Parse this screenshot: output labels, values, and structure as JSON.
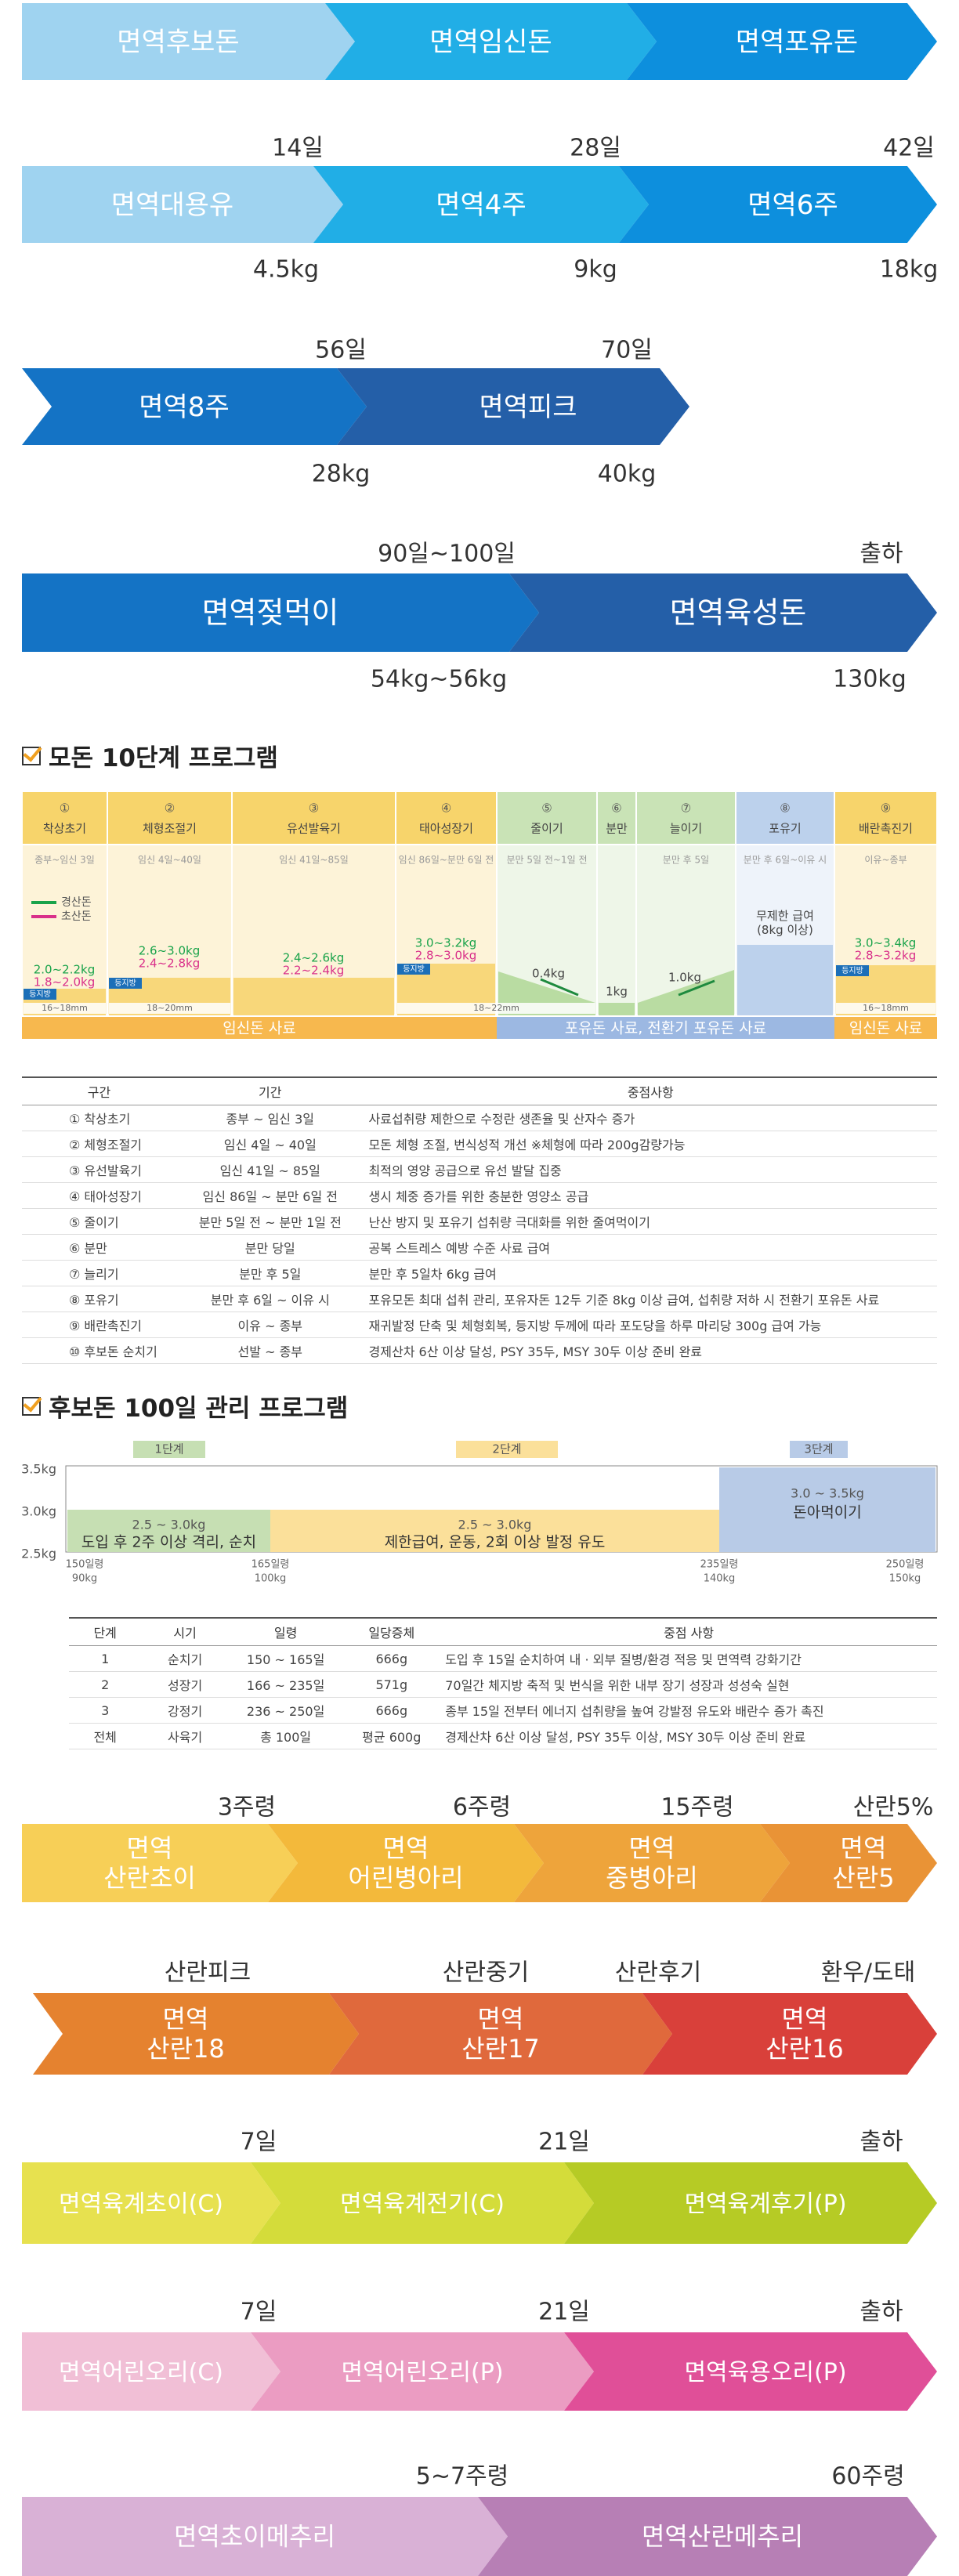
{
  "stage_flows": [
    {
      "id": "pig-breeding",
      "segments": [
        {
          "label": "면역후보돈",
          "color": "#9fd3f0"
        },
        {
          "label": "면역임신돈",
          "color": "#21aee6"
        },
        {
          "label": "면역포유돈",
          "color": "#0d8fdd"
        }
      ],
      "top_labels": [],
      "bottom_labels": []
    },
    {
      "id": "pig-weaning",
      "segments": [
        {
          "label": "면역대용유",
          "color": "#9fd3f0"
        },
        {
          "label": "면역4주",
          "color": "#21aee6"
        },
        {
          "label": "면역6주",
          "color": "#0d8fdd"
        }
      ],
      "top_labels": [
        "14일",
        "28일",
        "42일"
      ],
      "bottom_labels": [
        "4.5kg",
        "9kg",
        "18kg"
      ]
    },
    {
      "id": "pig-grower",
      "segments": [
        {
          "label": "면역8주",
          "color": "#1473c5"
        },
        {
          "label": "면역피크",
          "color": "#245fa8"
        }
      ],
      "top_labels": [
        "56일",
        "70일"
      ],
      "bottom_labels": [
        "28kg",
        "40kg"
      ]
    },
    {
      "id": "pig-finisher",
      "segments": [
        {
          "label": "면역젖먹이",
          "color": "#1473c5"
        },
        {
          "label": "면역육성돈",
          "color": "#245fa8"
        }
      ],
      "top_labels": [
        "90일~100일",
        "출하"
      ],
      "bottom_labels": [
        "54kg~56kg",
        "130kg"
      ]
    },
    {
      "id": "layer-early",
      "segments": [
        {
          "label": "면역\n산란초이",
          "color": "#f7cf57"
        },
        {
          "label": "면역\n어린병아리",
          "color": "#f3b93b"
        },
        {
          "label": "면역\n중병아리",
          "color": "#eea43b"
        },
        {
          "label": "면역\n산란5",
          "color": "#e99336"
        }
      ],
      "top_labels": [
        "3주령",
        "6주령",
        "15주령",
        "산란5%"
      ],
      "bottom_labels": []
    },
    {
      "id": "layer-late",
      "segments": [
        {
          "label": "면역\n산란18",
          "color": "#e5822f"
        },
        {
          "label": "면역\n산란17",
          "color": "#e0693c"
        },
        {
          "label": "면역\n산란16",
          "color": "#d9403a"
        }
      ],
      "top_labels": [
        "산란피크",
        "산란중기",
        "산란후기",
        "환우/도태"
      ],
      "bottom_labels": []
    },
    {
      "id": "broiler",
      "segments": [
        {
          "label": "면역육계초이(C)",
          "color": "#e7e14f"
        },
        {
          "label": "면역육계전기(C)",
          "color": "#d4dc3a"
        },
        {
          "label": "면역육계후기(P)",
          "color": "#b6cb25"
        }
      ],
      "top_labels": [
        "7일",
        "21일",
        "출하"
      ],
      "bottom_labels": []
    },
    {
      "id": "duck",
      "segments": [
        {
          "label": "면역어린오리(C)",
          "color": "#f1bfd6"
        },
        {
          "label": "면역어린오리(P)",
          "color": "#eb9cc2"
        },
        {
          "label": "면역육용오리(P)",
          "color": "#e04f98"
        }
      ],
      "top_labels": [
        "7일",
        "21일",
        "출하"
      ],
      "bottom_labels": []
    },
    {
      "id": "quail",
      "segments": [
        {
          "label": "면역초이메추리",
          "color": "#d9b1d6"
        },
        {
          "label": "면역산란메추리",
          "color": "#b77fb5"
        }
      ],
      "top_labels": [
        "5~7주령",
        "60주령"
      ],
      "bottom_labels": []
    }
  ],
  "sow_program": {
    "title": "모돈 10단계 프로그램",
    "stages": [
      {
        "num": "①",
        "name": "착상초기",
        "period": "종부~임신 3일"
      },
      {
        "num": "②",
        "name": "체형조절기",
        "period": "임신 4일~40일"
      },
      {
        "num": "③",
        "name": "유선발육기",
        "period": "임신 41일~85일"
      },
      {
        "num": "④",
        "name": "태아성장기",
        "period": "임신 86일~분만 6일 전"
      },
      {
        "num": "⑤",
        "name": "줄이기",
        "period": "분만 5일 전~1일 전"
      },
      {
        "num": "⑥",
        "name": "분만",
        "period": ""
      },
      {
        "num": "⑦",
        "name": "늘이기",
        "period": "분만 후 5일"
      },
      {
        "num": "⑧",
        "name": "포유기",
        "period": "분만 후 6일~이유 시"
      },
      {
        "num": "⑨",
        "name": "배란촉진기",
        "period": "이유~종부"
      }
    ],
    "legend": [
      "경산돈",
      "초산돈"
    ],
    "feed_values": [
      {
        "top": "",
        "bottom_green": "2.0~2.2kg",
        "bottom_pink": "1.8~2.0kg"
      },
      {
        "green": "2.6~3.0kg",
        "pink": "2.4~2.8kg"
      },
      {
        "green": "2.4~2.6kg",
        "pink": "2.2~2.4kg"
      },
      {
        "green": "3.0~3.2kg",
        "pink": "2.8~3.0kg"
      },
      {
        "label": "0.4kg"
      },
      {
        "label": "1kg"
      },
      {
        "label": "1.0kg"
      },
      {
        "label": "무제한 급여\n(8kg 이상)"
      },
      {
        "green": "3.0~3.4kg",
        "pink": "2.8~3.2kg"
      }
    ],
    "backfat_labels": [
      "등지방",
      "16~18mm",
      "등지방",
      "18~20mm",
      "등지방",
      "18~22mm",
      "등지방",
      "16~18mm"
    ],
    "feed_bars": [
      "임신돈 사료",
      "포유돈 사료, 전환기 포유돈 사료",
      "임신돈 사료"
    ],
    "table": {
      "headers": [
        "구간",
        "기간",
        "중점사항"
      ],
      "rows": [
        [
          "① 착상초기",
          "종부 ~ 임신 3일",
          "사료섭취량 제한으로 수정란 생존율 및 산자수 증가"
        ],
        [
          "② 체형조절기",
          "임신 4일 ~ 40일",
          "모돈 체형 조절, 번식성적 개선     ※체형에 따라 200g감량가능"
        ],
        [
          "③ 유선발육기",
          "임신 41일 ~ 85일",
          "최적의 영양 공급으로 유선 발달 집중"
        ],
        [
          "④ 태아성장기",
          "임신 86일 ~ 분만 6일 전",
          "생시 체중 증가를 위한 충분한 영양소 공급"
        ],
        [
          "⑤ 줄이기",
          "분만 5일 전 ~ 분만 1일 전",
          "난산 방지 및 포유기 섭취량 극대화를 위한 줄여먹이기"
        ],
        [
          "⑥ 분만",
          "분만 당일",
          "공복 스트레스 예방 수준 사료 급여"
        ],
        [
          "⑦ 늘리기",
          "분만 후 5일",
          "분만 후 5일차 6kg 급여"
        ],
        [
          "⑧ 포유기",
          "분만 후 6일 ~ 이유 시",
          "포유모돈 최대 섭취 관리, 포유자돈 12두 기준 8kg 이상 급여, 섭취량 저하 시 전환기 포유돈 사료"
        ],
        [
          "⑨ 배란촉진기",
          "이유 ~ 종부",
          "재귀발정 단축 및 체형회복, 등지방 두께에 따라 포도당을 하루 마리당 300g 급여 가능"
        ],
        [
          "⑩ 후보돈 순치기",
          "선발 ~ 종부",
          "경제산차 6산 이상 달성, PSY 35두, MSY 30두 이상 준비 완료"
        ]
      ]
    }
  },
  "gilt_program": {
    "title": "후보돈 100일 관리 프로그램",
    "stage_tags": [
      "1단계",
      "2단계",
      "3단계"
    ],
    "y_ticks": [
      "3.5kg",
      "3.0kg",
      "2.5kg"
    ],
    "blocks": [
      {
        "range": "2.5 ~ 3.0kg",
        "desc": "도입 후 2주 이상 격리, 순치"
      },
      {
        "range": "2.5 ~ 3.0kg",
        "desc": "제한급여, 운동, 2회 이상 발정 유도"
      },
      {
        "range": "3.0 ~ 3.5kg",
        "desc": "돈아먹이기"
      }
    ],
    "x_labels": [
      {
        "day": "150일령",
        "weight": "90kg"
      },
      {
        "day": "165일령",
        "weight": "100kg"
      },
      {
        "day": "235일령",
        "weight": "140kg"
      },
      {
        "day": "250일령",
        "weight": "150kg"
      }
    ],
    "table": {
      "headers": [
        "단계",
        "시기",
        "일령",
        "일당증체",
        "중점 사항"
      ],
      "rows": [
        [
          "1",
          "순치기",
          "150 ~ 165일",
          "666g",
          "도입 후 15일 순치하여 내 · 외부 질병/환경 적응 및 면역력 강화기간"
        ],
        [
          "2",
          "성장기",
          "166 ~ 235일",
          "571g",
          "70일간 체지방 축적 및 번식을 위한 내부 장기 성장과 성성숙 실현"
        ],
        [
          "3",
          "강정기",
          "236 ~ 250일",
          "666g",
          "종부 15일 전부터 에너지 섭취량을 높여 강발정 유도와 배란수 증가 촉진"
        ],
        [
          "전체",
          "사육기",
          "총 100일",
          "평균 600g",
          "경제산차 6산 이상 달성, PSY 35두 이상, MSY 30두 이상 준비 완료"
        ]
      ]
    }
  },
  "colors": {
    "blue_light": "#9fd3f0",
    "blue_mid": "#21aee6",
    "blue_dark": "#0d8fdd",
    "navy": "#245fa8",
    "yellow": "#f7cf57",
    "green_bg": "#c6dfb3",
    "lilac": "#b8cbe7"
  }
}
